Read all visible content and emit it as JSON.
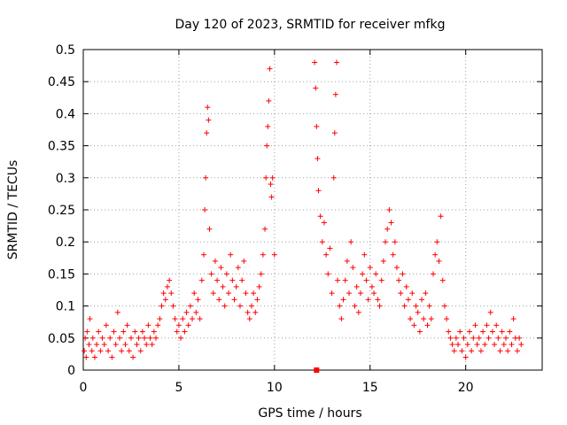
{
  "chart_data": {
    "type": "scatter",
    "title": "Day 120 of 2023, SRMTID for receiver mfkg",
    "xlabel": "GPS time / hours",
    "ylabel": "SRMTID / TECUs",
    "xlim": [
      0,
      24
    ],
    "ylim": [
      0,
      0.5
    ],
    "xticks": [
      0,
      5,
      10,
      15,
      20
    ],
    "xtick_labels": [
      "0",
      "5",
      "10",
      "15",
      "20"
    ],
    "yticks": [
      0,
      0.05,
      0.1,
      0.15,
      0.2,
      0.25,
      0.3,
      0.35,
      0.4,
      0.45,
      0.5
    ],
    "ytick_labels": [
      "0",
      "0.05",
      "0.1",
      "0.15",
      "0.2",
      "0.25",
      "0.3",
      "0.35",
      "0.4",
      "0.45",
      "0.5"
    ],
    "grid": true,
    "marker": "+",
    "color": "#ff0000",
    "series": [
      {
        "name": "SRMTID",
        "points": [
          [
            0.05,
            0.03
          ],
          [
            0.1,
            0.05
          ],
          [
            0.15,
            0.02
          ],
          [
            0.2,
            0.06
          ],
          [
            0.3,
            0.04
          ],
          [
            0.35,
            0.08
          ],
          [
            0.45,
            0.03
          ],
          [
            0.5,
            0.05
          ],
          [
            0.6,
            0.02
          ],
          [
            0.7,
            0.04
          ],
          [
            0.8,
            0.06
          ],
          [
            0.9,
            0.03
          ],
          [
            1.0,
            0.05
          ],
          [
            1.1,
            0.04
          ],
          [
            1.2,
            0.07
          ],
          [
            1.3,
            0.03
          ],
          [
            1.4,
            0.05
          ],
          [
            1.5,
            0.02
          ],
          [
            1.6,
            0.06
          ],
          [
            1.7,
            0.04
          ],
          [
            1.8,
            0.09
          ],
          [
            1.9,
            0.05
          ],
          [
            2.0,
            0.03
          ],
          [
            2.1,
            0.06
          ],
          [
            2.2,
            0.04
          ],
          [
            2.3,
            0.07
          ],
          [
            2.4,
            0.03
          ],
          [
            2.5,
            0.05
          ],
          [
            2.6,
            0.02
          ],
          [
            2.7,
            0.06
          ],
          [
            2.8,
            0.04
          ],
          [
            2.9,
            0.05
          ],
          [
            3.0,
            0.03
          ],
          [
            3.1,
            0.06
          ],
          [
            3.2,
            0.05
          ],
          [
            3.3,
            0.04
          ],
          [
            3.4,
            0.07
          ],
          [
            3.5,
            0.05
          ],
          [
            3.6,
            0.04
          ],
          [
            3.7,
            0.06
          ],
          [
            3.8,
            0.05
          ],
          [
            3.9,
            0.07
          ],
          [
            4.0,
            0.08
          ],
          [
            4.1,
            0.1
          ],
          [
            4.2,
            0.12
          ],
          [
            4.3,
            0.11
          ],
          [
            4.4,
            0.13
          ],
          [
            4.5,
            0.14
          ],
          [
            4.6,
            0.12
          ],
          [
            4.7,
            0.1
          ],
          [
            4.8,
            0.08
          ],
          [
            4.9,
            0.06
          ],
          [
            5.0,
            0.07
          ],
          [
            5.1,
            0.05
          ],
          [
            5.2,
            0.08
          ],
          [
            5.3,
            0.06
          ],
          [
            5.4,
            0.09
          ],
          [
            5.5,
            0.07
          ],
          [
            5.6,
            0.1
          ],
          [
            5.7,
            0.08
          ],
          [
            5.8,
            0.12
          ],
          [
            5.9,
            0.09
          ],
          [
            6.0,
            0.11
          ],
          [
            6.1,
            0.08
          ],
          [
            6.2,
            0.14
          ],
          [
            6.3,
            0.18
          ],
          [
            6.35,
            0.25
          ],
          [
            6.4,
            0.3
          ],
          [
            6.45,
            0.37
          ],
          [
            6.5,
            0.41
          ],
          [
            6.55,
            0.39
          ],
          [
            6.6,
            0.22
          ],
          [
            6.7,
            0.15
          ],
          [
            6.8,
            0.12
          ],
          [
            6.9,
            0.17
          ],
          [
            7.0,
            0.14
          ],
          [
            7.1,
            0.11
          ],
          [
            7.2,
            0.16
          ],
          [
            7.3,
            0.13
          ],
          [
            7.4,
            0.1
          ],
          [
            7.5,
            0.15
          ],
          [
            7.6,
            0.12
          ],
          [
            7.7,
            0.18
          ],
          [
            7.8,
            0.14
          ],
          [
            7.9,
            0.11
          ],
          [
            8.0,
            0.13
          ],
          [
            8.1,
            0.16
          ],
          [
            8.2,
            0.1
          ],
          [
            8.3,
            0.14
          ],
          [
            8.4,
            0.17
          ],
          [
            8.5,
            0.12
          ],
          [
            8.6,
            0.09
          ],
          [
            8.7,
            0.08
          ],
          [
            8.8,
            0.1
          ],
          [
            8.9,
            0.12
          ],
          [
            9.0,
            0.09
          ],
          [
            9.1,
            0.11
          ],
          [
            9.2,
            0.13
          ],
          [
            9.3,
            0.15
          ],
          [
            9.4,
            0.18
          ],
          [
            9.5,
            0.22
          ],
          [
            9.55,
            0.3
          ],
          [
            9.6,
            0.35
          ],
          [
            9.65,
            0.38
          ],
          [
            9.7,
            0.42
          ],
          [
            9.75,
            0.47
          ],
          [
            9.8,
            0.29
          ],
          [
            9.85,
            0.27
          ],
          [
            9.9,
            0.3
          ],
          [
            10.0,
            0.18
          ],
          [
            12.1,
            0.48
          ],
          [
            12.15,
            0.44
          ],
          [
            12.2,
            0.38
          ],
          [
            12.25,
            0.33
          ],
          [
            12.3,
            0.28
          ],
          [
            12.4,
            0.24
          ],
          [
            12.5,
            0.2
          ],
          [
            12.6,
            0.23
          ],
          [
            12.7,
            0.18
          ],
          [
            12.8,
            0.15
          ],
          [
            12.9,
            0.19
          ],
          [
            13.0,
            0.12
          ],
          [
            13.1,
            0.3
          ],
          [
            13.15,
            0.37
          ],
          [
            13.2,
            0.43
          ],
          [
            13.25,
            0.48
          ],
          [
            13.3,
            0.14
          ],
          [
            13.4,
            0.1
          ],
          [
            13.5,
            0.08
          ],
          [
            13.6,
            0.11
          ],
          [
            13.7,
            0.14
          ],
          [
            13.8,
            0.17
          ],
          [
            13.9,
            0.12
          ],
          [
            14.0,
            0.2
          ],
          [
            14.1,
            0.16
          ],
          [
            14.2,
            0.1
          ],
          [
            14.3,
            0.13
          ],
          [
            14.4,
            0.09
          ],
          [
            14.5,
            0.12
          ],
          [
            14.6,
            0.15
          ],
          [
            14.7,
            0.18
          ],
          [
            14.8,
            0.14
          ],
          [
            14.9,
            0.11
          ],
          [
            15.0,
            0.16
          ],
          [
            15.1,
            0.13
          ],
          [
            15.2,
            0.12
          ],
          [
            15.3,
            0.15
          ],
          [
            15.4,
            0.11
          ],
          [
            15.5,
            0.1
          ],
          [
            15.6,
            0.14
          ],
          [
            15.7,
            0.17
          ],
          [
            15.8,
            0.2
          ],
          [
            15.9,
            0.22
          ],
          [
            16.0,
            0.25
          ],
          [
            16.1,
            0.23
          ],
          [
            16.2,
            0.18
          ],
          [
            16.3,
            0.2
          ],
          [
            16.4,
            0.16
          ],
          [
            16.5,
            0.14
          ],
          [
            16.6,
            0.12
          ],
          [
            16.7,
            0.15
          ],
          [
            16.8,
            0.1
          ],
          [
            16.9,
            0.13
          ],
          [
            17.0,
            0.11
          ],
          [
            17.1,
            0.08
          ],
          [
            17.2,
            0.12
          ],
          [
            17.3,
            0.07
          ],
          [
            17.4,
            0.1
          ],
          [
            17.5,
            0.09
          ],
          [
            17.6,
            0.06
          ],
          [
            17.7,
            0.11
          ],
          [
            17.8,
            0.08
          ],
          [
            17.9,
            0.12
          ],
          [
            18.0,
            0.07
          ],
          [
            18.1,
            0.1
          ],
          [
            18.2,
            0.08
          ],
          [
            18.3,
            0.15
          ],
          [
            18.4,
            0.18
          ],
          [
            18.5,
            0.2
          ],
          [
            18.6,
            0.17
          ],
          [
            18.7,
            0.24
          ],
          [
            18.8,
            0.14
          ],
          [
            18.9,
            0.1
          ],
          [
            19.0,
            0.08
          ],
          [
            19.1,
            0.06
          ],
          [
            19.2,
            0.05
          ],
          [
            19.3,
            0.04
          ],
          [
            19.4,
            0.03
          ],
          [
            19.5,
            0.05
          ],
          [
            19.6,
            0.04
          ],
          [
            19.7,
            0.06
          ],
          [
            19.8,
            0.03
          ],
          [
            19.9,
            0.05
          ],
          [
            20.0,
            0.02
          ],
          [
            20.1,
            0.04
          ],
          [
            20.2,
            0.06
          ],
          [
            20.3,
            0.03
          ],
          [
            20.4,
            0.05
          ],
          [
            20.5,
            0.07
          ],
          [
            20.6,
            0.04
          ],
          [
            20.7,
            0.05
          ],
          [
            20.8,
            0.03
          ],
          [
            20.9,
            0.06
          ],
          [
            21.0,
            0.04
          ],
          [
            21.1,
            0.07
          ],
          [
            21.2,
            0.05
          ],
          [
            21.3,
            0.09
          ],
          [
            21.4,
            0.06
          ],
          [
            21.5,
            0.04
          ],
          [
            21.6,
            0.07
          ],
          [
            21.7,
            0.05
          ],
          [
            21.8,
            0.03
          ],
          [
            21.9,
            0.06
          ],
          [
            22.0,
            0.04
          ],
          [
            22.1,
            0.05
          ],
          [
            22.2,
            0.03
          ],
          [
            22.3,
            0.06
          ],
          [
            22.4,
            0.04
          ],
          [
            22.5,
            0.08
          ],
          [
            22.6,
            0.05
          ],
          [
            22.7,
            0.03
          ],
          [
            22.8,
            0.05
          ],
          [
            22.9,
            0.04
          ]
        ]
      }
    ]
  }
}
